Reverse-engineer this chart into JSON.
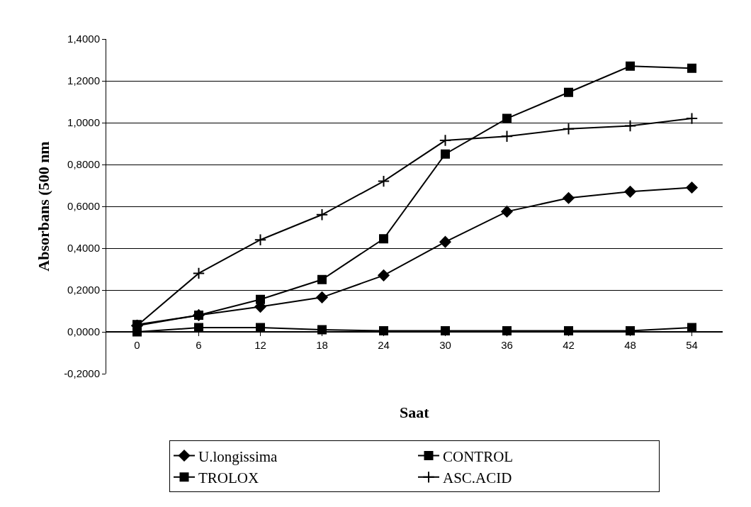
{
  "chart_data": {
    "type": "line",
    "xlabel": "Saat",
    "ylabel": "Absorbans (500 nm",
    "categories": [
      "0",
      "6",
      "12",
      "18",
      "24",
      "30",
      "36",
      "42",
      "48",
      "54"
    ],
    "series": [
      {
        "name": "U.longissima",
        "color": "#000000",
        "marker": "diamond",
        "values": [
          0.03,
          0.08,
          0.12,
          0.165,
          0.27,
          0.43,
          0.575,
          0.64,
          0.67,
          0.69
        ]
      },
      {
        "name": "CONTROL",
        "color": "#000000",
        "marker": "square",
        "values": [
          0.035,
          0.08,
          0.155,
          0.25,
          0.445,
          0.85,
          1.02,
          1.145,
          1.27,
          1.26
        ]
      },
      {
        "name": "TROLOX",
        "color": "#000000",
        "marker": "square",
        "values": [
          0.0,
          0.02,
          0.02,
          0.01,
          0.005,
          0.005,
          0.005,
          0.005,
          0.005,
          0.02
        ]
      },
      {
        "name": "ASC.ACID",
        "color": "#000000",
        "marker": "cross",
        "values": [
          0.03,
          0.28,
          0.44,
          0.56,
          0.72,
          0.915,
          0.935,
          0.97,
          0.985,
          1.02
        ]
      }
    ],
    "ylim": [
      -0.2,
      1.4
    ],
    "yticks": [
      {
        "value": -0.2,
        "label": "-0,2000"
      },
      {
        "value": 0,
        "label": "0,0000"
      },
      {
        "value": 0.2,
        "label": "0,2000"
      },
      {
        "value": 0.4,
        "label": "0,4000"
      },
      {
        "value": 0.6,
        "label": "0,6000"
      },
      {
        "value": 0.8,
        "label": "0,8000"
      },
      {
        "value": 1.0,
        "label": "1,0000"
      },
      {
        "value": 1.2,
        "label": "1,2000"
      },
      {
        "value": 1.4,
        "label": "1,4000"
      }
    ],
    "grid": "y",
    "legend": "bottom",
    "line_style": "solid"
  }
}
